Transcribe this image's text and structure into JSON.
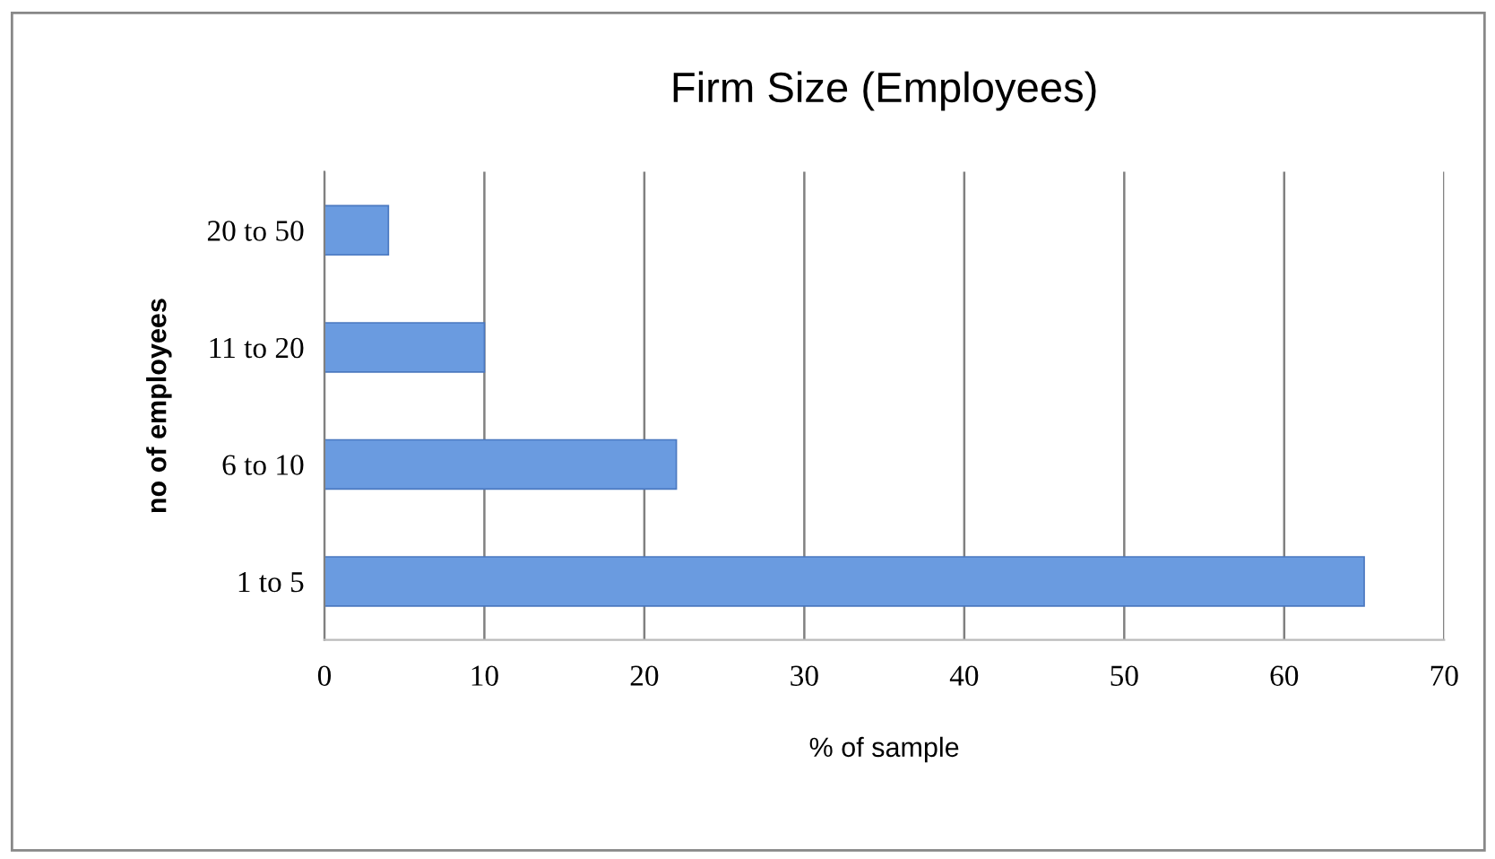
{
  "chart_data": {
    "type": "bar",
    "orientation": "horizontal",
    "title": "Firm Size (Employees)",
    "xlabel": "% of sample",
    "ylabel": "no of employees",
    "categories": [
      "20 to 50",
      "11 to 20",
      "6 to 10",
      "1 to 5"
    ],
    "values": [
      4,
      10,
      22,
      65
    ],
    "color": "#6a9be0",
    "xlim": [
      0,
      70
    ],
    "xticks": [
      0,
      10,
      20,
      30,
      40,
      50,
      60,
      70
    ],
    "grid": "x",
    "legend": false
  }
}
